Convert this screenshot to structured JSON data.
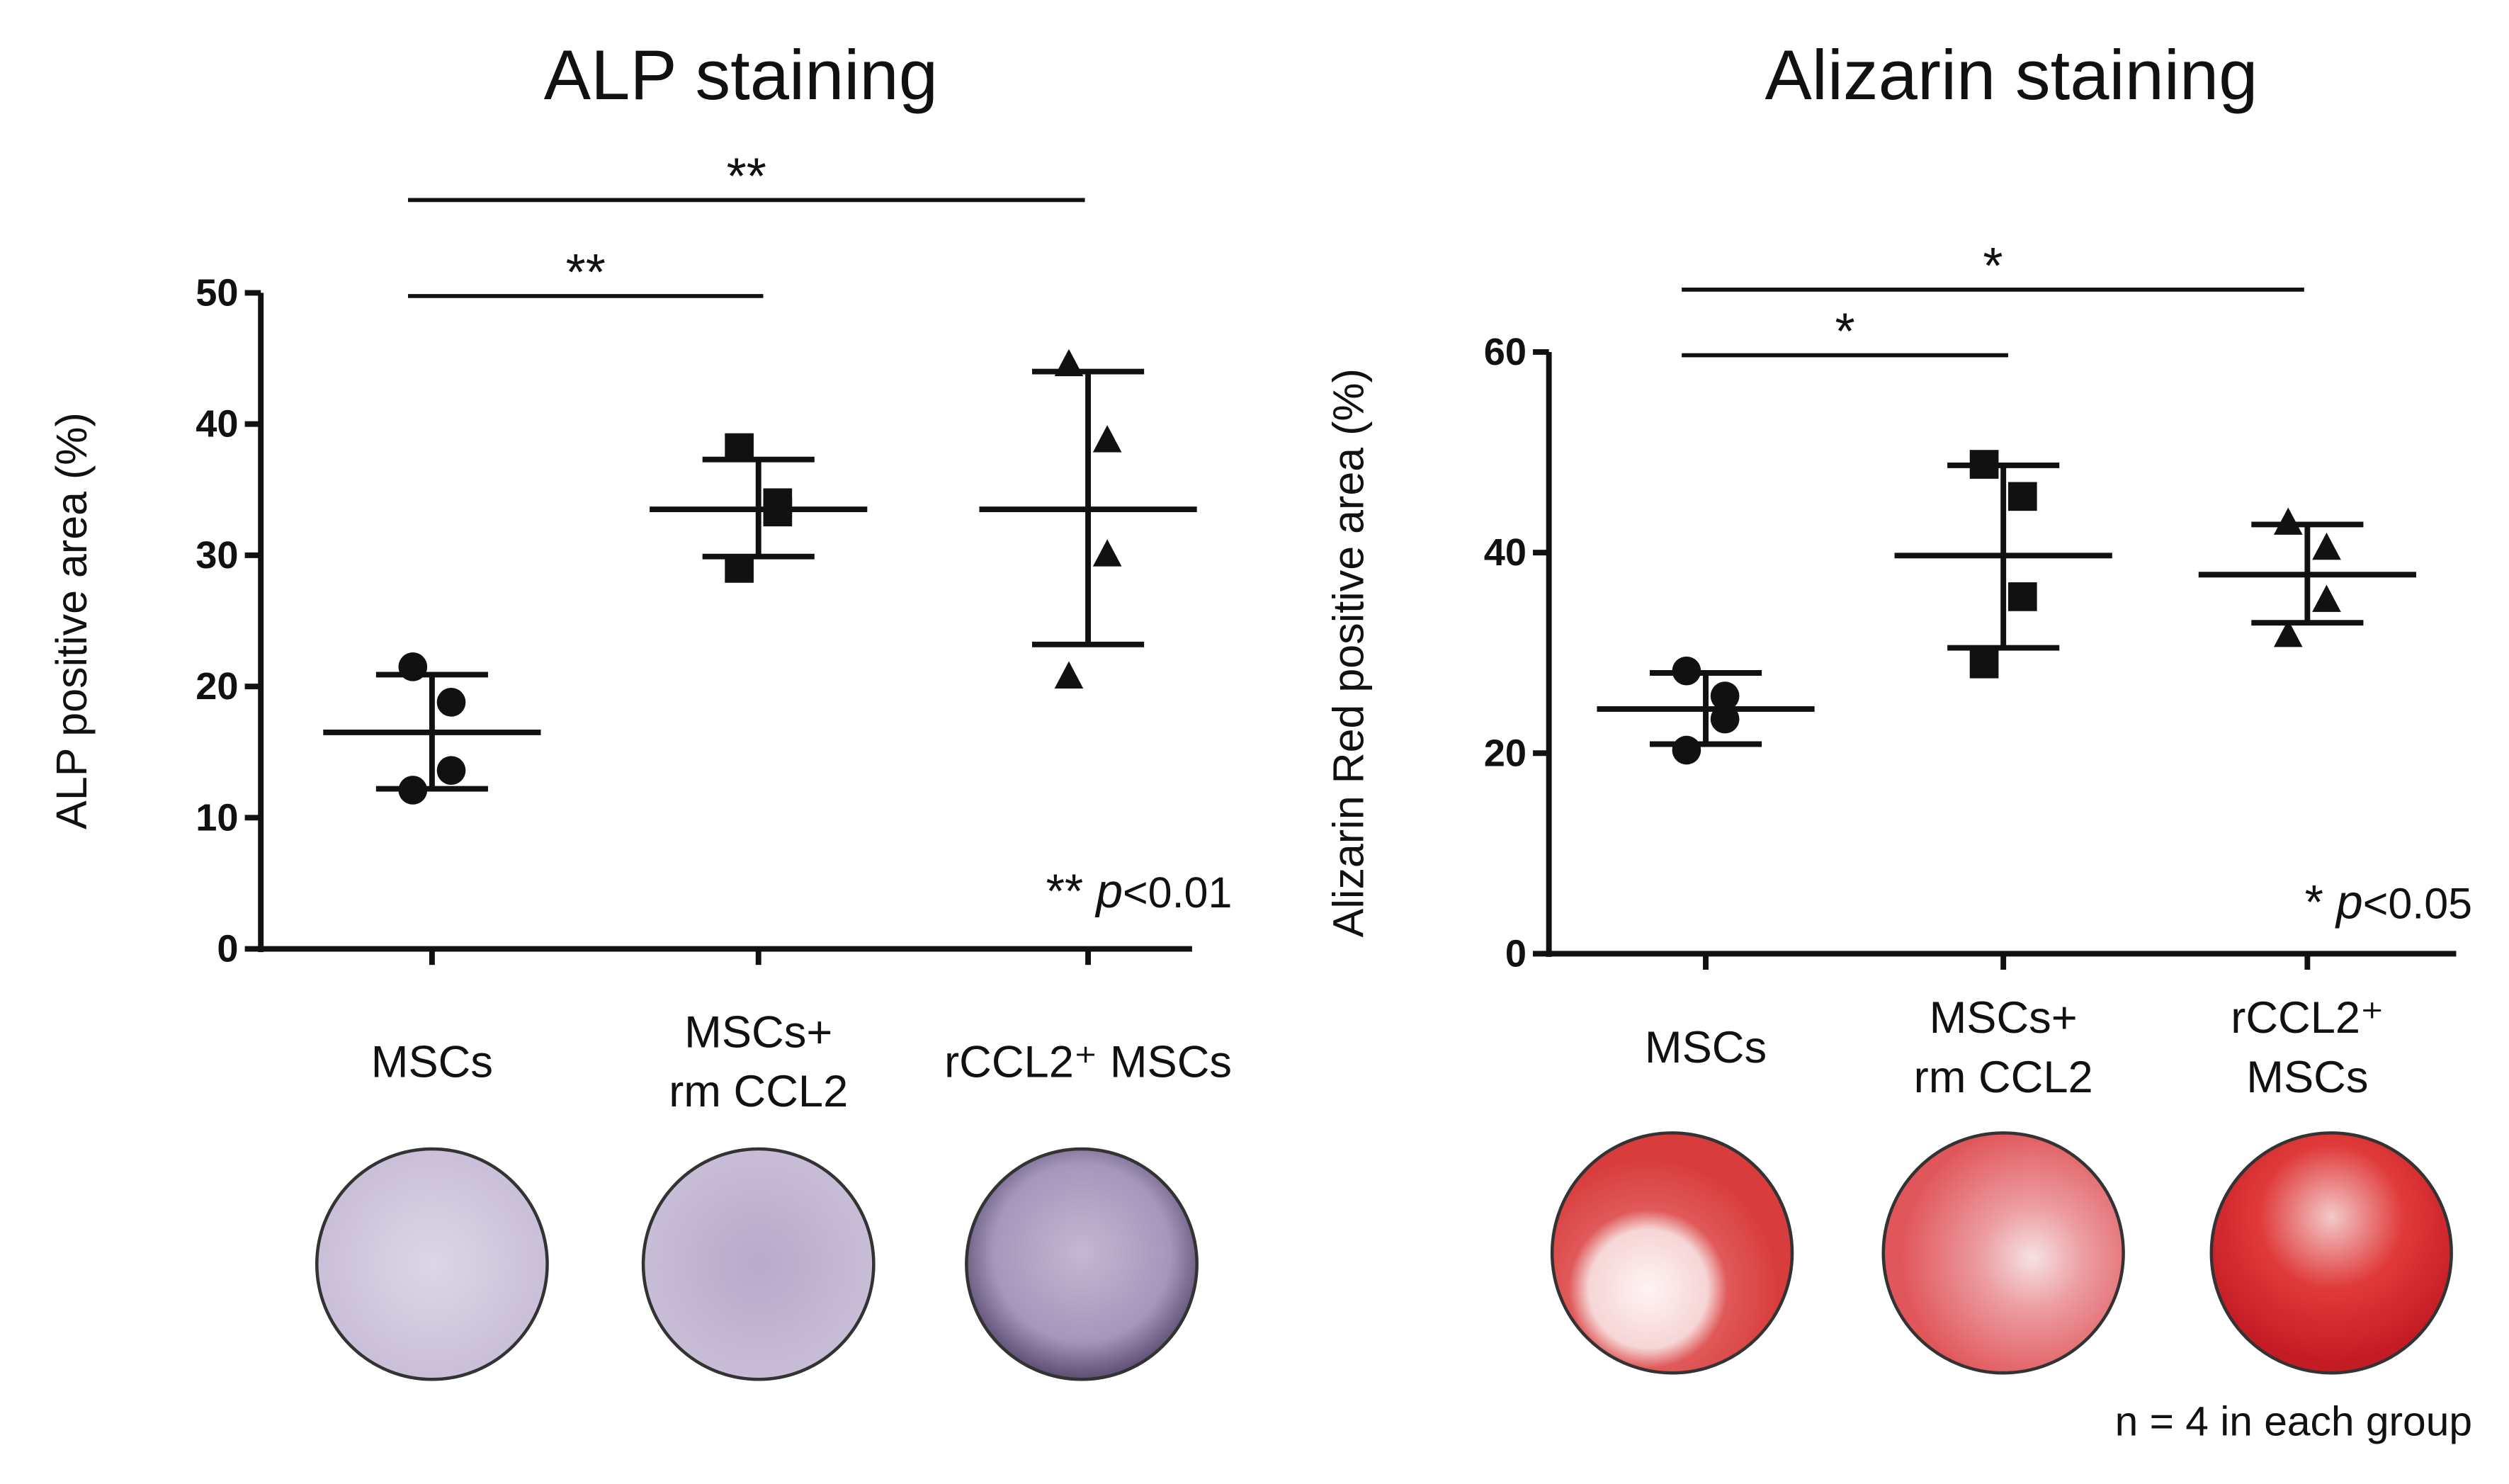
{
  "chart_data": [
    {
      "type": "dotplot",
      "title": "ALP staining",
      "ylabel": "ALP positive area (%)",
      "categories": [
        [
          "MSCs"
        ],
        [
          "MSCs+",
          "rm CCL2"
        ],
        [
          "rCCL2⁺ MSCs"
        ]
      ],
      "markers": [
        "circle",
        "square",
        "triangle"
      ],
      "points": [
        [
          21.5,
          18.8,
          13.6,
          12.1
        ],
        [
          38.2,
          34,
          33.3,
          29
        ],
        [
          44.5,
          38.7,
          30,
          20.7
        ]
      ],
      "mean": [
        16.5,
        33.5,
        33.5
      ],
      "sd_upper": [
        20.9,
        37.3,
        44
      ],
      "sd_lower": [
        12.2,
        29.9,
        23.2
      ],
      "ylim": [
        0,
        50
      ],
      "yticks": [
        0,
        10,
        20,
        30,
        40,
        50
      ],
      "comparisons": [
        {
          "label": "**",
          "from": 0,
          "to": 1
        },
        {
          "label": "**",
          "from": 0,
          "to": 2
        }
      ],
      "note": {
        "stars": "**",
        "p": "p",
        "rest": "<0.01"
      }
    },
    {
      "type": "dotplot",
      "title": "Alizarin staining",
      "ylabel": "Alizarin Red positive area (%)",
      "categories": [
        [
          "MSCs"
        ],
        [
          "MSCs+",
          "rm CCL2"
        ],
        [
          "rCCL2⁺",
          "MSCs"
        ]
      ],
      "markers": [
        "circle",
        "square",
        "triangle"
      ],
      "points": [
        [
          28.2,
          25.7,
          23.4,
          20.3
        ],
        [
          48.8,
          45.6,
          35.6,
          28.9
        ],
        [
          42.9,
          40.4,
          35.2,
          31.7
        ]
      ],
      "mean": [
        24.4,
        39.7,
        37.8
      ],
      "sd_upper": [
        28,
        48.7,
        42.8
      ],
      "sd_lower": [
        20.9,
        30.5,
        33
      ],
      "ylim": [
        0,
        60
      ],
      "yticks": [
        0,
        20,
        40,
        60
      ],
      "comparisons": [
        {
          "label": "*",
          "from": 0,
          "to": 1
        },
        {
          "label": "*",
          "from": 0,
          "to": 2
        }
      ],
      "note": {
        "stars": "*",
        "p": "p",
        "rest": "<0.05"
      }
    }
  ],
  "footnote": "n = 4 in each group"
}
